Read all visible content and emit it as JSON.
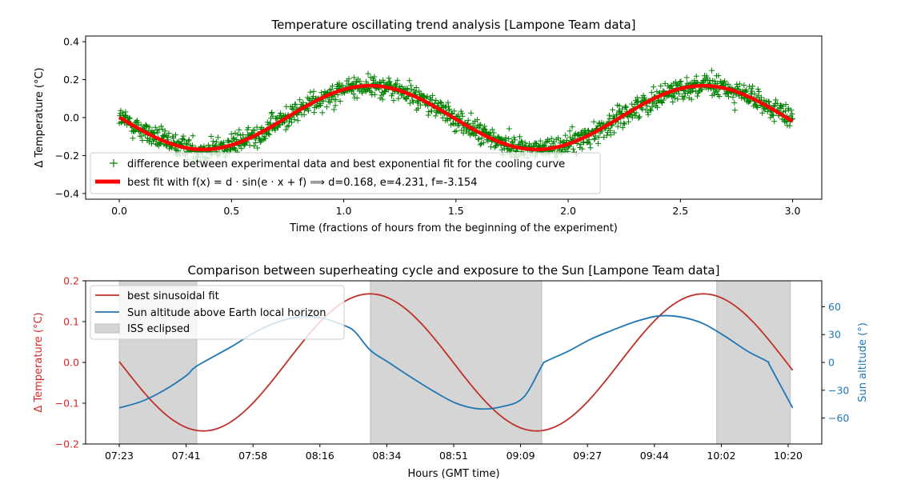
{
  "chart_data": [
    {
      "type": "scatter",
      "title": "Temperature oscillating trend analysis [Lampone Team data]",
      "xlabel": "Time (fractions of hours from the beginning of the experiment)",
      "ylabel": "Δ Temperature (°C)",
      "xlim": [
        -0.15,
        3.13
      ],
      "ylim": [
        -0.43,
        0.43
      ],
      "xticks": [
        0.0,
        0.5,
        1.0,
        1.5,
        2.0,
        2.5,
        3.0
      ],
      "xtick_labels": [
        "0.0",
        "0.5",
        "1.0",
        "1.5",
        "2.0",
        "2.5",
        "3.0"
      ],
      "yticks": [
        -0.4,
        -0.2,
        0.0,
        0.2,
        0.4
      ],
      "ytick_labels": [
        "−0.4",
        "−0.2",
        "0.0",
        "0.2",
        "0.4"
      ],
      "legend_position": "lower-left",
      "grid": false,
      "series": [
        {
          "name": "difference between experimental data and best exponential fit for the cooling curve",
          "kind": "scatter",
          "marker": "+",
          "color": "#008000",
          "x_range": [
            0.0,
            3.0
          ],
          "model": {
            "d": 0.168,
            "e": 4.231,
            "f": -3.154
          },
          "noise_sd": 0.06,
          "n_points": 1400
        },
        {
          "name": "best fit with f(x) = d · sin(e · x + f) ⟹ d=0.168, e=4.231, f=-3.154",
          "kind": "line",
          "color": "#ff0000",
          "x_range": [
            0.0,
            3.0
          ],
          "model": {
            "d": 0.168,
            "e": 4.231,
            "f": -3.154
          }
        }
      ]
    },
    {
      "type": "line",
      "title": "Comparison between superheating cycle and exposure to the Sun [Lampone Team data]",
      "xlabel": "Hours (GMT time)",
      "ylabel": "Δ Temperature (°C)",
      "ylabel_right": "Sun altitude (°)",
      "xlim": [
        -0.15,
        3.13
      ],
      "ylim": [
        -0.2,
        0.2
      ],
      "ylim_right": [
        -88,
        88
      ],
      "xtick_labels": [
        "07:23",
        "07:41",
        "07:58",
        "08:16",
        "08:34",
        "08:51",
        "09:09",
        "09:27",
        "09:44",
        "10:02",
        "10:20"
      ],
      "yticks": [
        -0.2,
        -0.1,
        0.0,
        0.1,
        0.2
      ],
      "ytick_labels": [
        "−0.2",
        "−0.1",
        "0.0",
        "0.1",
        "0.2"
      ],
      "yticks_right": [
        -60,
        -30,
        0,
        30,
        60
      ],
      "ytick_labels_right": [
        "−60",
        "−30",
        "0",
        "30",
        "60"
      ],
      "legend_position": "upper-left",
      "grid": false,
      "series": [
        {
          "name": "best sinusoidal fit",
          "color": "#c0302a",
          "axis": "left",
          "x_range": [
            0.0,
            3.0
          ],
          "model": {
            "d": 0.168,
            "e": 4.231,
            "f": -3.154
          }
        },
        {
          "name": "Sun altitude above Earth local horizon",
          "color": "#1f77b4",
          "axis": "right",
          "x": [
            0.0,
            0.1,
            0.2,
            0.3,
            0.345,
            0.5,
            0.6,
            0.7,
            0.8,
            0.9,
            1.0,
            1.05,
            1.119,
            1.2,
            1.3,
            1.4,
            1.5,
            1.6,
            1.7,
            1.8,
            1.882,
            1.9,
            2.0,
            2.1,
            2.2,
            2.3,
            2.4,
            2.5,
            2.6,
            2.7,
            2.8,
            2.887,
            2.9,
            3.0
          ],
          "y": [
            -49,
            -42,
            -30,
            -14,
            -4,
            17,
            32,
            43,
            49,
            48,
            40,
            33,
            13,
            0,
            -16,
            -31,
            -44,
            -50,
            -48,
            -38,
            -4,
            1,
            12,
            25,
            35,
            44,
            50,
            49,
            42,
            28,
            12,
            1,
            -4,
            -49
          ]
        },
        {
          "name": "ISS eclipsed",
          "kind": "span",
          "color": "#d5d5d5",
          "spans": [
            [
              0.0,
              0.345
            ],
            [
              1.119,
              1.882
            ],
            [
              2.662,
              2.99
            ]
          ]
        }
      ]
    }
  ]
}
